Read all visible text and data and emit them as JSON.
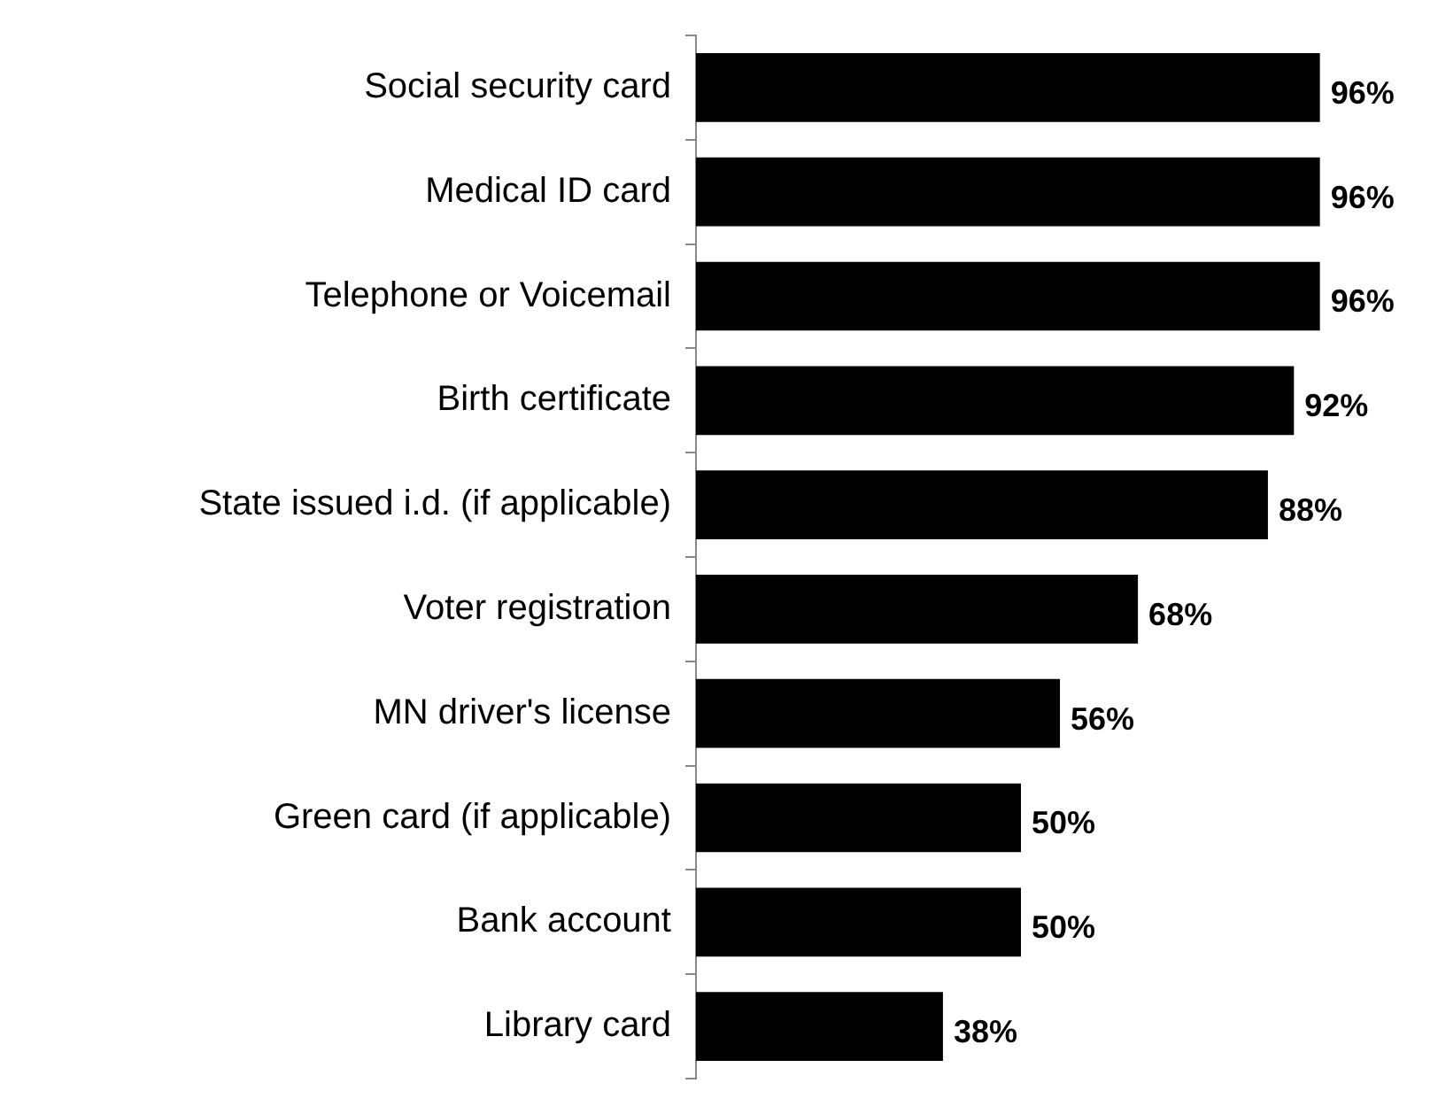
{
  "chart_data": {
    "type": "bar",
    "orientation": "horizontal",
    "categories": [
      "Social security card",
      "Medical ID card",
      "Telephone or Voicemail",
      "Birth certificate",
      "State issued i.d. (if applicable)",
      "Voter registration",
      "MN driver's license",
      "Green card (if applicable)",
      "Bank account",
      "Library card"
    ],
    "values": [
      96,
      96,
      96,
      92,
      88,
      68,
      56,
      50,
      50,
      38
    ],
    "value_labels": [
      "96%",
      "96%",
      "96%",
      "92%",
      "88%",
      "68%",
      "56%",
      "50%",
      "50%",
      "38%"
    ],
    "color": "#000000"
  }
}
